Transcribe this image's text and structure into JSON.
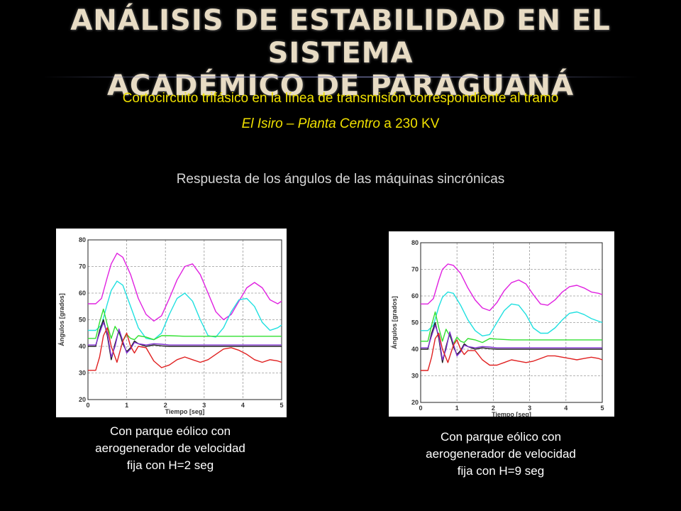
{
  "slide": {
    "title_line1": "ANÁLISIS DE ESTABILIDAD EN EL SISTEMA",
    "title_line2": "ACADÉMICO DE PARAGUANÁ",
    "subtitle_line1": "Cortocircuito trifásico en la línea de transmisión correspondiente al tramo",
    "subtitle_line2_italic": "El Isiro – Planta Centro",
    "subtitle_line2_rest": " a 230 KV",
    "response_heading": "Respuesta de los ángulos de las máquinas sincrónicas",
    "title_color": "#e8dcc4",
    "subtitle_color": "#f0e000"
  },
  "captions": [
    [
      "Con parque eólico con",
      "aerogenerador de velocidad",
      "fija con H=2 seg"
    ],
    [
      "Con parque eólico con",
      "aerogenerador de velocidad",
      "fija con H=9 seg"
    ]
  ],
  "chart_data": [
    {
      "type": "line",
      "title": "",
      "xlabel": "Tiempo [seg]",
      "ylabel": "Ángulos [grados]",
      "xlim": [
        0,
        5
      ],
      "ylim": [
        20,
        80
      ],
      "xticks": [
        "0",
        "1",
        "2",
        "3",
        "4",
        "5"
      ],
      "yticks": [
        "20",
        "30",
        "40",
        "50",
        "60",
        "70",
        "80"
      ],
      "grid": "dashed",
      "series": [
        {
          "color": "#e020e0",
          "x": [
            0,
            0.2,
            0.35,
            0.5,
            0.6,
            0.75,
            0.9,
            1.1,
            1.3,
            1.5,
            1.7,
            1.9,
            2.1,
            2.3,
            2.5,
            2.7,
            2.9,
            3.1,
            3.3,
            3.5,
            3.7,
            3.9,
            4.1,
            4.3,
            4.5,
            4.7,
            4.9,
            5
          ],
          "values": [
            56,
            56,
            58,
            66,
            71,
            75,
            73.5,
            67,
            58,
            52,
            49.5,
            51.5,
            58,
            65,
            70,
            71,
            67,
            60,
            53,
            50,
            52,
            57,
            62,
            64,
            62,
            57.5,
            56,
            57
          ]
        },
        {
          "color": "#20e0e0",
          "x": [
            0,
            0.2,
            0.35,
            0.5,
            0.6,
            0.75,
            0.9,
            1.1,
            1.3,
            1.5,
            1.7,
            1.9,
            2.1,
            2.3,
            2.5,
            2.7,
            2.9,
            3.1,
            3.3,
            3.5,
            3.7,
            3.9,
            4.1,
            4.3,
            4.5,
            4.7,
            4.9,
            5
          ],
          "values": [
            46,
            46,
            48,
            56,
            61,
            64.5,
            63,
            55,
            47,
            43,
            42.5,
            45,
            52,
            58,
            60,
            57,
            50,
            44,
            43.5,
            47,
            53,
            57.5,
            58,
            55,
            49,
            46,
            47,
            48
          ]
        },
        {
          "color": "#30e030",
          "x": [
            0,
            0.2,
            0.3,
            0.4,
            0.5,
            0.6,
            0.7,
            0.8,
            0.9,
            1.0,
            1.1,
            1.2,
            1.3,
            1.5,
            1.7,
            1.9,
            2.1,
            2.5,
            3,
            3.5,
            4,
            4.5,
            5
          ],
          "values": [
            43,
            43,
            49,
            54,
            48,
            43,
            47.5,
            45,
            42,
            44.5,
            43,
            42.5,
            44,
            43.5,
            42.5,
            44,
            44,
            43.8,
            43.8,
            43.8,
            43.8,
            43.8,
            43.8
          ]
        },
        {
          "color": "#202020",
          "x": [
            0,
            0.2,
            0.3,
            0.4,
            0.5,
            0.6,
            0.7,
            0.8,
            0.9,
            1.0,
            1.1,
            1.2,
            1.3,
            1.5,
            1.7,
            1.9,
            2.1,
            2.5,
            3,
            3.5,
            4,
            4.5,
            5
          ],
          "values": [
            40,
            40,
            46,
            50,
            44,
            35,
            41,
            46,
            41,
            38,
            39.5,
            42,
            41,
            40,
            40.5,
            40.2,
            40,
            40,
            40,
            40,
            40,
            40,
            40
          ]
        },
        {
          "color": "#8030d0",
          "x": [
            0,
            0.2,
            0.3,
            0.4,
            0.5,
            0.6,
            0.7,
            0.8,
            0.9,
            1.0,
            1.1,
            1.2,
            1.3,
            1.5,
            1.7,
            1.9,
            2.1,
            2.5,
            3,
            3.5,
            4,
            4.5,
            5
          ],
          "values": [
            40.5,
            40.5,
            45,
            49,
            45,
            36,
            40,
            46.5,
            42,
            37.5,
            39,
            41.5,
            41,
            40.5,
            41,
            40.8,
            40.5,
            40.5,
            40.5,
            40.5,
            40.5,
            40.5,
            40.5
          ]
        },
        {
          "color": "#e02020",
          "x": [
            0,
            0.2,
            0.3,
            0.4,
            0.5,
            0.6,
            0.75,
            0.9,
            1.0,
            1.1,
            1.2,
            1.3,
            1.5,
            1.7,
            1.9,
            2.1,
            2.3,
            2.5,
            2.7,
            2.9,
            3.1,
            3.3,
            3.5,
            3.7,
            3.9,
            4.1,
            4.3,
            4.5,
            4.7,
            4.9,
            5
          ],
          "values": [
            31,
            31,
            36,
            44,
            47,
            40,
            34,
            42,
            45,
            40,
            37.5,
            40,
            39.5,
            34.5,
            32,
            33,
            35,
            36,
            35,
            34,
            35,
            37,
            39,
            39.5,
            38.5,
            37,
            35,
            34,
            35,
            34.5,
            34
          ]
        }
      ]
    },
    {
      "type": "line",
      "title": "",
      "xlabel": "Tiempo [seg]",
      "ylabel": "Ángulos [grados]",
      "xlim": [
        0,
        5
      ],
      "ylim": [
        20,
        80
      ],
      "xticks": [
        "0",
        "1",
        "2",
        "3",
        "4",
        "5"
      ],
      "yticks": [
        "20",
        "30",
        "40",
        "50",
        "60",
        "70",
        "80"
      ],
      "grid": "dashed",
      "series": [
        {
          "color": "#e020e0",
          "x": [
            0,
            0.2,
            0.35,
            0.5,
            0.6,
            0.75,
            0.9,
            1.1,
            1.3,
            1.5,
            1.7,
            1.9,
            2.1,
            2.3,
            2.5,
            2.7,
            2.9,
            3.1,
            3.3,
            3.5,
            3.7,
            3.9,
            4.1,
            4.3,
            4.5,
            4.7,
            4.9,
            5
          ],
          "values": [
            57,
            57,
            59,
            66,
            70,
            72,
            71.5,
            68.5,
            63,
            58.5,
            55.5,
            54.5,
            57.5,
            62,
            65,
            66,
            64.5,
            60.5,
            57,
            56.5,
            58.5,
            61.5,
            63.5,
            64,
            63,
            61.5,
            61,
            60.5
          ]
        },
        {
          "color": "#20e0e0",
          "x": [
            0,
            0.2,
            0.35,
            0.5,
            0.6,
            0.75,
            0.9,
            1.1,
            1.3,
            1.5,
            1.7,
            1.9,
            2.1,
            2.3,
            2.5,
            2.7,
            2.9,
            3.1,
            3.3,
            3.5,
            3.7,
            3.9,
            4.1,
            4.3,
            4.5,
            4.7,
            4.9,
            5
          ],
          "values": [
            47,
            47,
            49,
            56,
            59.5,
            61.5,
            61,
            56.5,
            51,
            47,
            45,
            45.5,
            50,
            54.5,
            57,
            56.5,
            53,
            48,
            46,
            46,
            48,
            51,
            53.5,
            54,
            53,
            51.5,
            50.5,
            50
          ]
        },
        {
          "color": "#30e030",
          "x": [
            0,
            0.2,
            0.3,
            0.4,
            0.5,
            0.6,
            0.7,
            0.8,
            0.9,
            1.0,
            1.1,
            1.2,
            1.3,
            1.5,
            1.7,
            1.9,
            2.1,
            2.5,
            3,
            3.5,
            4,
            4.5,
            5
          ],
          "values": [
            43,
            43,
            49,
            54,
            48,
            43,
            47.5,
            45,
            42,
            44.5,
            43,
            42.5,
            44,
            43.5,
            42.5,
            44,
            43.8,
            43.5,
            43.5,
            43.5,
            43.5,
            43.5,
            43.5
          ]
        },
        {
          "color": "#202020",
          "x": [
            0,
            0.2,
            0.3,
            0.4,
            0.5,
            0.6,
            0.7,
            0.8,
            0.9,
            1.0,
            1.1,
            1.2,
            1.3,
            1.5,
            1.7,
            1.9,
            2.1,
            2.5,
            3,
            3.5,
            4,
            4.5,
            5
          ],
          "values": [
            40,
            40,
            46,
            50,
            44,
            35,
            41,
            46,
            41,
            38,
            39.5,
            42,
            41,
            40,
            40.5,
            40.2,
            40,
            40,
            40,
            40,
            40,
            40,
            40
          ]
        },
        {
          "color": "#8030d0",
          "x": [
            0,
            0.2,
            0.3,
            0.4,
            0.5,
            0.6,
            0.7,
            0.8,
            0.9,
            1.0,
            1.1,
            1.2,
            1.3,
            1.5,
            1.7,
            1.9,
            2.1,
            2.5,
            3,
            3.5,
            4,
            4.5,
            5
          ],
          "values": [
            40.5,
            40.5,
            45,
            49,
            45,
            36,
            40,
            46.5,
            42,
            37.5,
            39,
            41.5,
            41,
            40.5,
            41,
            40.8,
            40.5,
            40.5,
            40.5,
            40.5,
            40.5,
            40.5,
            40.5
          ]
        },
        {
          "color": "#e02020",
          "x": [
            0,
            0.2,
            0.3,
            0.4,
            0.5,
            0.6,
            0.75,
            0.9,
            1.0,
            1.1,
            1.2,
            1.3,
            1.5,
            1.7,
            1.9,
            2.1,
            2.3,
            2.5,
            2.7,
            2.9,
            3.1,
            3.3,
            3.5,
            3.7,
            3.9,
            4.1,
            4.3,
            4.5,
            4.7,
            4.9,
            5
          ],
          "values": [
            32,
            32,
            37,
            44,
            46,
            40,
            35,
            41.5,
            43.5,
            40,
            38,
            39.5,
            39.5,
            36,
            34,
            34,
            35,
            36,
            35.5,
            35,
            35.5,
            36.5,
            37.5,
            37.5,
            37,
            36.5,
            36,
            36.5,
            37,
            36.5,
            36
          ]
        }
      ]
    }
  ]
}
